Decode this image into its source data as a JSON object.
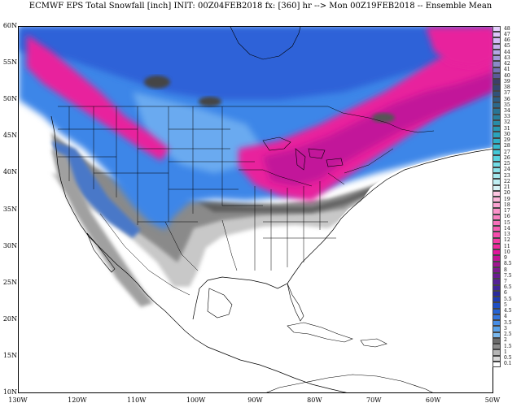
{
  "title": "ECMWF EPS Total Snowfall [inch] INIT: 00Z04FEB2018 fx: [360] hr --> Mon 00Z19FEB2018 -- Ensemble Mean",
  "y_axis": {
    "labels": [
      "60N",
      "55N",
      "50N",
      "45N",
      "40N",
      "35N",
      "30N",
      "25N",
      "20N",
      "15N",
      "10N"
    ]
  },
  "x_axis": {
    "labels": [
      "130W",
      "120W",
      "110W",
      "100W",
      "90W",
      "80W",
      "70W",
      "60W",
      "50W"
    ]
  },
  "colorbar": {
    "levels": [
      "0.1",
      "0.5",
      "1",
      "1.5",
      "2",
      "2.5",
      "3",
      "3.5",
      "4",
      "4.5",
      "5",
      "5.5",
      "6",
      "6.5",
      "7",
      "7.5",
      "8",
      "8.5",
      "9",
      "10",
      "11",
      "12",
      "13",
      "14",
      "15",
      "16",
      "17",
      "18",
      "19",
      "20",
      "21",
      "22",
      "23",
      "24",
      "25",
      "26",
      "27",
      "28",
      "29",
      "30",
      "31",
      "32",
      "33",
      "34",
      "35",
      "36",
      "37",
      "38",
      "39",
      "40",
      "41",
      "42",
      "43",
      "44",
      "45",
      "46",
      "47",
      "48"
    ],
    "colors": [
      "#ffffff",
      "#d9d9d9",
      "#b5b5b5",
      "#8c8c8c",
      "#6b6b6b",
      "#7ab8ee",
      "#5aa2ea",
      "#468de6",
      "#3476de",
      "#2563d2",
      "#1f4fc4",
      "#1e3ab2",
      "#2a2a9e",
      "#40259a",
      "#552196",
      "#6a1c92",
      "#7e198f",
      "#a01490",
      "#c21396",
      "#e0169c",
      "#f0289f",
      "#f43aa6",
      "#f64cad",
      "#f75db4",
      "#f86fbb",
      "#f981c2",
      "#fa93ca",
      "#fba4d2",
      "#fcb5d9",
      "#fdc6e1",
      "#d7f2f5",
      "#bfeef2",
      "#a5e8ee",
      "#8be2ea",
      "#72dce6",
      "#5ad4e0",
      "#44c9d8",
      "#36bccf",
      "#2fb0c6",
      "#2aa4bc",
      "#2898b2",
      "#278ca8",
      "#27809e",
      "#287495",
      "#2a688c",
      "#2d5d83",
      "#31527a",
      "#364871",
      "#3c3f69",
      "#5a5a9a",
      "#7373b5",
      "#8b8bc8",
      "#a09bd8",
      "#b3a8e4",
      "#c4b3ee",
      "#d2bdf5",
      "#dcc6fa",
      "#e6d0fd"
    ]
  }
}
